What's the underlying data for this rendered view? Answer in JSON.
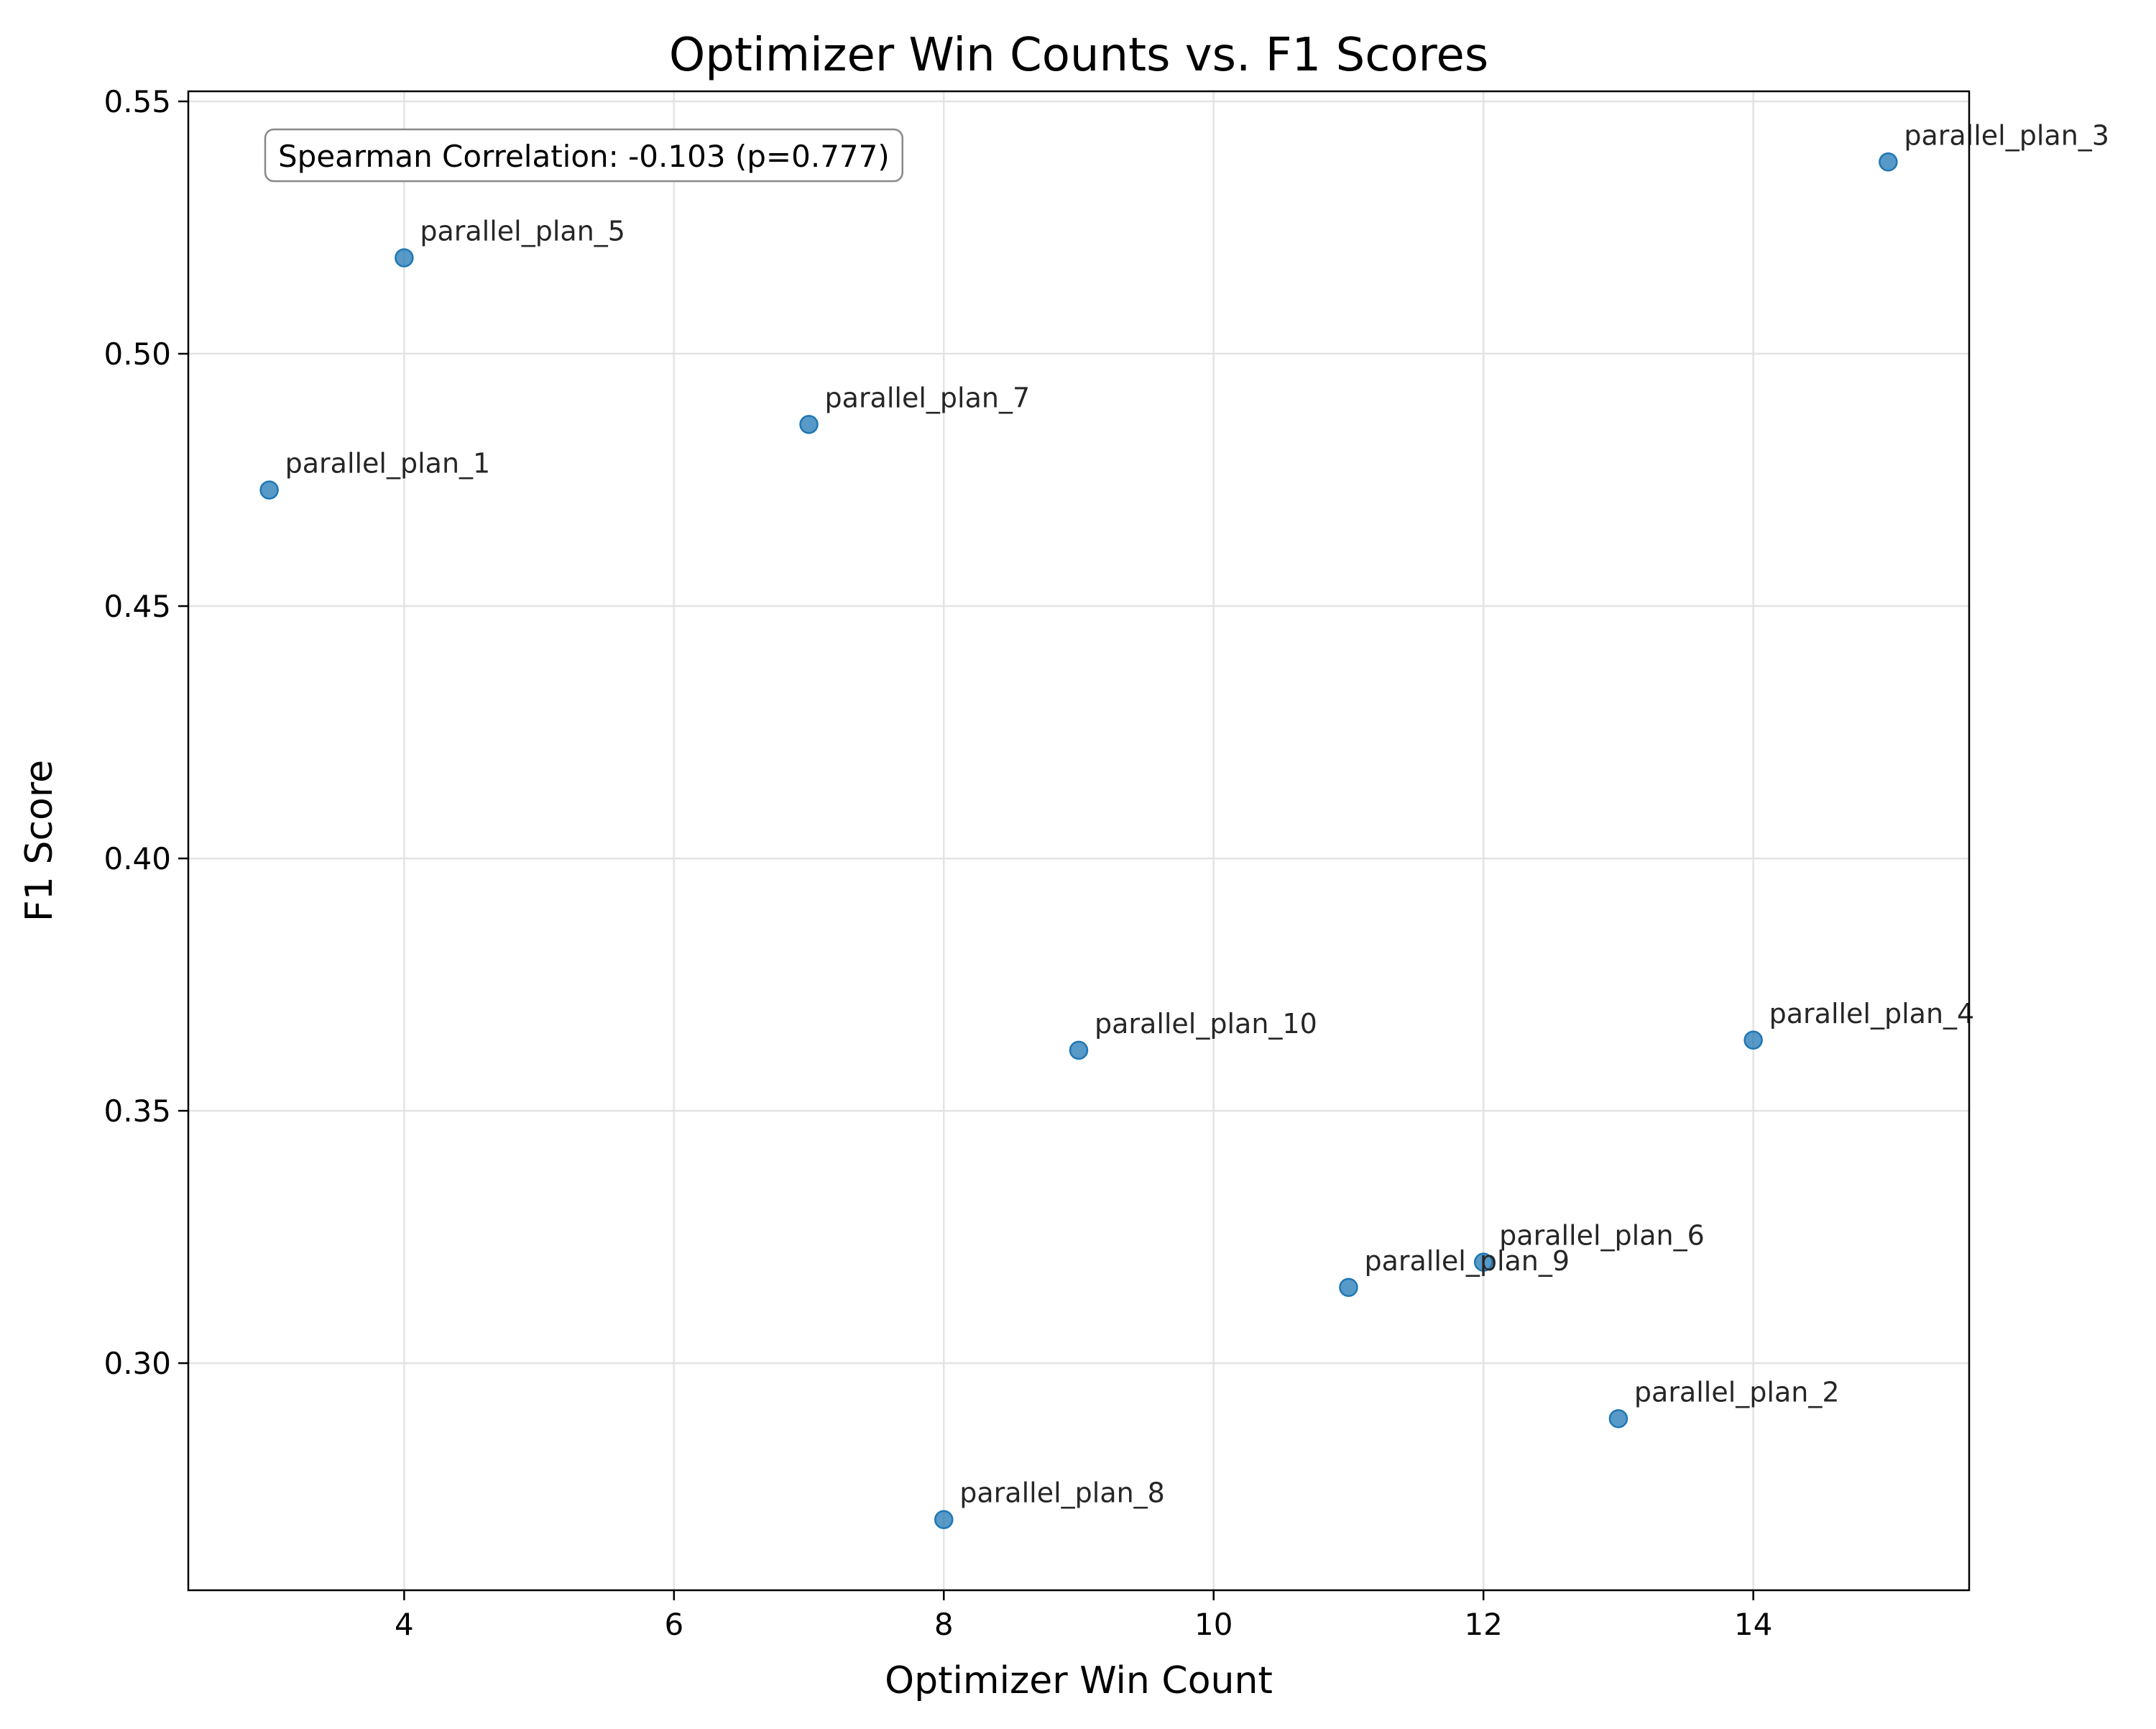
{
  "chart_data": {
    "type": "scatter",
    "title": "Optimizer Win Counts vs. F1 Scores",
    "xlabel": "Optimizer Win Count",
    "ylabel": "F1 Score",
    "xlim": [
      2.4,
      15.6
    ],
    "ylim": [
      0.255,
      0.552
    ],
    "xticks": [
      4,
      6,
      8,
      10,
      12,
      14
    ],
    "xtick_labels": [
      "4",
      "6",
      "8",
      "10",
      "12",
      "14"
    ],
    "yticks": [
      0.3,
      0.35,
      0.4,
      0.45,
      0.5,
      0.55
    ],
    "ytick_labels": [
      "0.30",
      "0.35",
      "0.40",
      "0.45",
      "0.50",
      "0.55"
    ],
    "grid": true,
    "marker_color": "#1f77b4",
    "annotation": "Spearman Correlation: -0.103 (p=0.777)",
    "points": [
      {
        "label": "parallel_plan_1",
        "x": 3,
        "y": 0.473
      },
      {
        "label": "parallel_plan_2",
        "x": 13,
        "y": 0.289
      },
      {
        "label": "parallel_plan_3",
        "x": 15,
        "y": 0.538
      },
      {
        "label": "parallel_plan_4",
        "x": 14,
        "y": 0.364
      },
      {
        "label": "parallel_plan_5",
        "x": 4,
        "y": 0.519
      },
      {
        "label": "parallel_plan_6",
        "x": 12,
        "y": 0.32
      },
      {
        "label": "parallel_plan_7",
        "x": 7,
        "y": 0.486
      },
      {
        "label": "parallel_plan_8",
        "x": 8,
        "y": 0.269
      },
      {
        "label": "parallel_plan_9",
        "x": 11,
        "y": 0.315
      },
      {
        "label": "parallel_plan_10",
        "x": 9,
        "y": 0.362
      }
    ]
  }
}
